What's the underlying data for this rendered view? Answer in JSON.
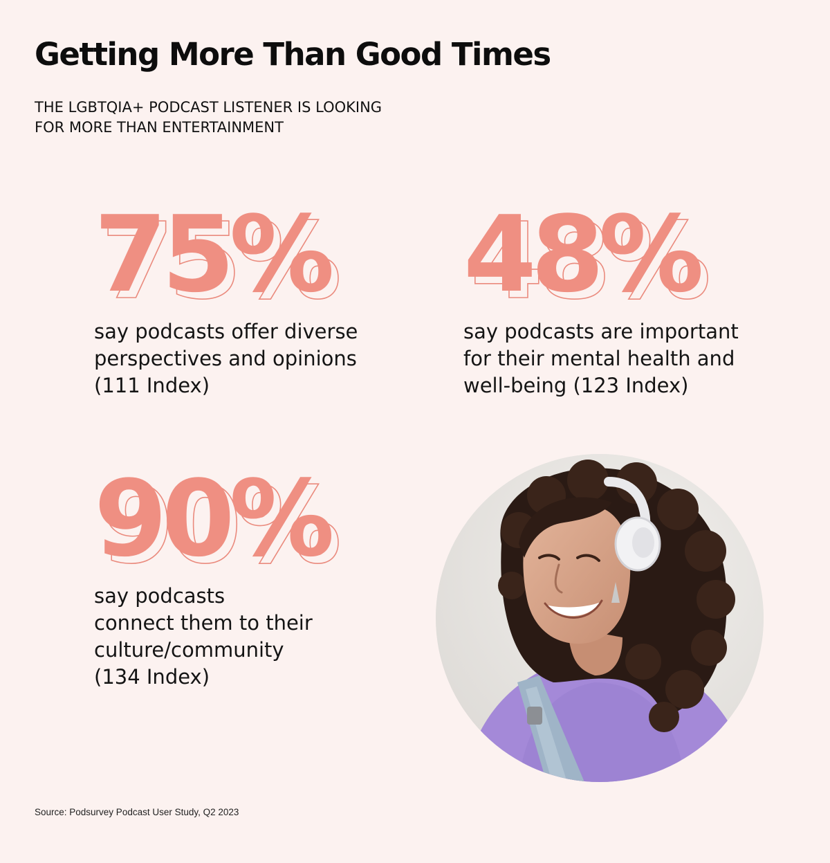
{
  "header": {
    "title": "Getting More Than Good Times",
    "subtitle_lines": [
      "THE LGBTQIA+ PODCAST LISTENER IS LOOKING",
      "FOR MORE THAN ENTERTAINMENT"
    ]
  },
  "stats": [
    {
      "value": "75%",
      "lines": [
        "say podcasts offer diverse",
        "perspectives and opinions",
        "(111 Index)"
      ]
    },
    {
      "value": "48%",
      "lines": [
        "say podcasts are important",
        "for their mental health and",
        "well-being (123 Index)"
      ]
    },
    {
      "value": "90%",
      "lines": [
        "say podcasts",
        "connect them to their",
        "culture/community",
        "(134 Index)"
      ]
    }
  ],
  "footer": {
    "source": "Source: Podsurvey Podcast User Study, Q2 2023"
  },
  "colors": {
    "background": "#fcf2f0",
    "accent": "#ef8f82",
    "text": "#111111"
  }
}
